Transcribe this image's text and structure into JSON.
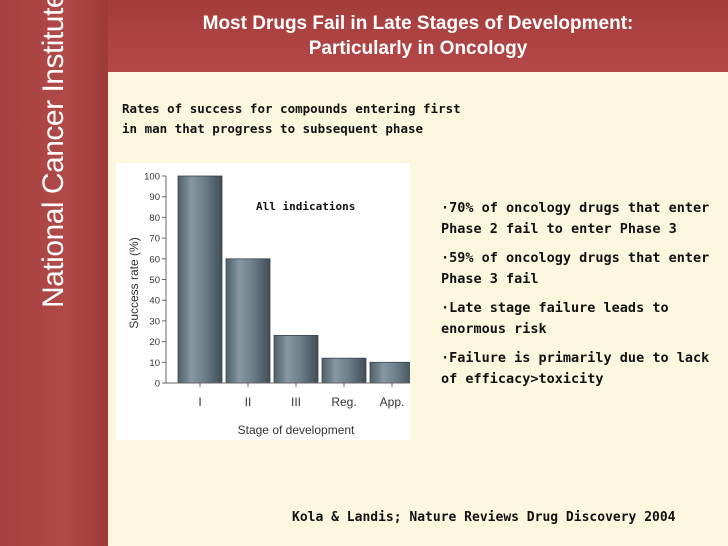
{
  "sidebar": {
    "logo_text": "National Cancer Institute"
  },
  "header": {
    "title_line1": "Most Drugs Fail in Late Stages of Development:",
    "title_line2": "Particularly in Oncology"
  },
  "subtitle": {
    "line1": "Rates of success for compounds entering first",
    "line2": "in man that progress to subsequent phase"
  },
  "chart_data": {
    "type": "bar",
    "categories": [
      "I",
      "II",
      "III",
      "Reg.",
      "App."
    ],
    "values": [
      100,
      60,
      23,
      12,
      10
    ],
    "ylim": [
      0,
      100
    ],
    "yticks": [
      "0",
      "10",
      "20",
      "30",
      "40",
      "50",
      "60",
      "70",
      "80",
      "90",
      "100"
    ],
    "xlabel": "Stage of development",
    "ylabel": "Success rate (%)",
    "annotation": "All indications",
    "bar_color": "#6d7e8a"
  },
  "bullets": [
    "·70% of oncology drugs that enter Phase 2 fail to enter Phase 3",
    "·59% of oncology drugs that enter Phase 3 fail",
    "·Late stage failure leads to enormous risk",
    "·Failure is primarily due to lack of efficacy>toxicity"
  ],
  "citation": "Kola & Landis; Nature Reviews Drug Discovery 2004",
  "colors": {
    "background": "#fbf7df",
    "brand_red": "#a83e3e",
    "text": "#111111"
  }
}
